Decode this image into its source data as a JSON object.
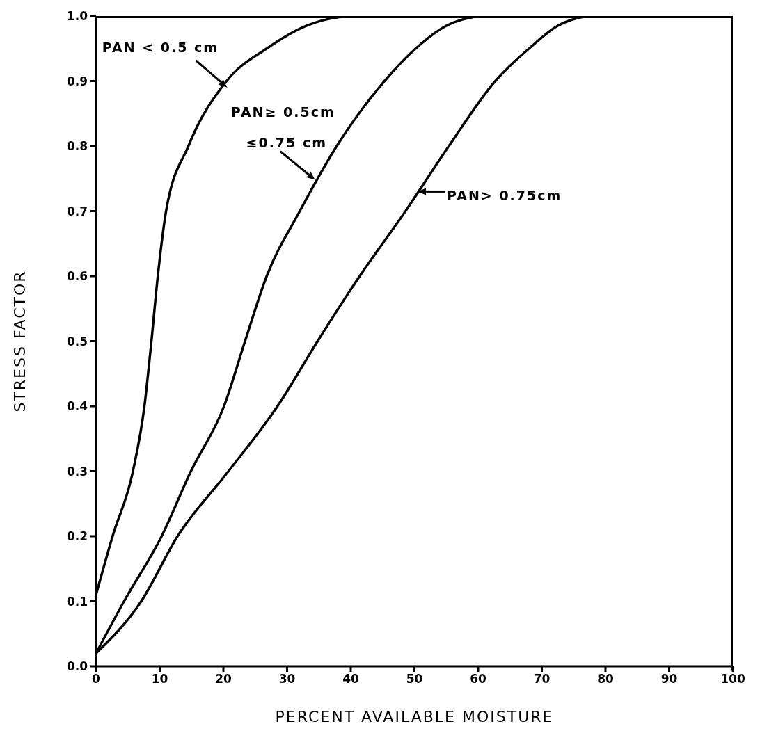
{
  "chart_data": {
    "type": "line",
    "xlabel": "PERCENT AVAILABLE MOISTURE",
    "ylabel": "STRESS FACTOR",
    "xlim": [
      0,
      100
    ],
    "xticks": [
      0,
      10,
      20,
      30,
      40,
      50,
      60,
      70,
      80,
      90,
      100
    ],
    "ylim": [
      0,
      1
    ],
    "yticks": [
      {
        "value": 0,
        "label": "0.0"
      },
      {
        "value": 0.1,
        "label": "0.1"
      },
      {
        "value": 0.2,
        "label": "0.2"
      },
      {
        "value": 0.3,
        "label": "0.3"
      },
      {
        "value": 0.4,
        "label": "0.4"
      },
      {
        "value": 0.5,
        "label": "0.5"
      },
      {
        "value": 0.6,
        "label": "0.6"
      },
      {
        "value": 0.7,
        "label": "0.7"
      },
      {
        "value": 0.8,
        "label": "0.8"
      },
      {
        "value": 0.9,
        "label": "0.9"
      },
      {
        "value": 1,
        "label": "1.0"
      }
    ],
    "grid": false,
    "legend": false,
    "marker": "none",
    "line_style": "solid",
    "series": [
      {
        "color": "#000000",
        "x": [
          0,
          2.6,
          5.8,
          7.6,
          8.7,
          9.7,
          11,
          14.5,
          20.5,
          26.8,
          33,
          38,
          41
        ],
        "values": [
          0.11,
          0.2,
          0.3,
          0.4,
          0.5,
          0.6,
          0.7,
          0.8,
          0.9,
          0.95,
          0.985,
          0.998,
          1
        ]
      },
      {
        "color": "#000000",
        "x": [
          0,
          4.4,
          10.3,
          14.9,
          20.1,
          23.4,
          26.8,
          32,
          37.8,
          45.3,
          50.2,
          55,
          60
        ],
        "values": [
          0.02,
          0.1,
          0.2,
          0.3,
          0.4,
          0.5,
          0.6,
          0.7,
          0.8,
          0.9,
          0.95,
          0.985,
          1
        ]
      },
      {
        "color": "#000000",
        "x": [
          0,
          7.1,
          12.8,
          20.8,
          28.5,
          34.8,
          41.4,
          48.6,
          55.4,
          62.7,
          68,
          72.5,
          77
        ],
        "values": [
          0.02,
          0.1,
          0.2,
          0.3,
          0.4,
          0.5,
          0.6,
          0.7,
          0.8,
          0.9,
          0.95,
          0.985,
          1
        ]
      }
    ],
    "annotations": [
      {
        "text": "PAN < 0.5 cm",
        "x": 20.6,
        "y": 0.89
      },
      {
        "text": "PAN≥ 0.5cm\n≤0.75 cm",
        "x": 34.4,
        "y": 0.748
      },
      {
        "text": "PAN> 0.75cm",
        "x": 50.5,
        "y": 0.73
      }
    ]
  }
}
